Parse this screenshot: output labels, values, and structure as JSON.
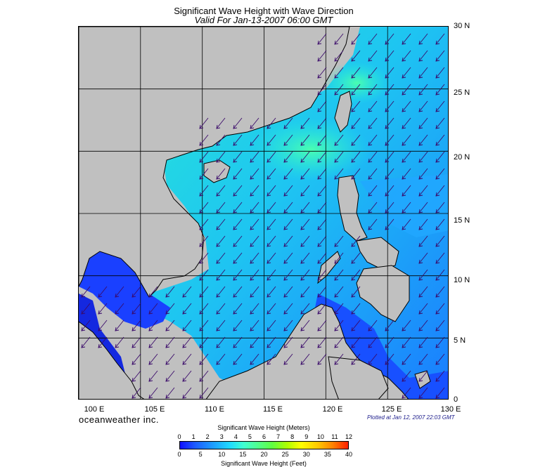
{
  "title": "Significant Wave Height with Wave Direction",
  "subtitle": "Valid For Jan-13-2007 06:00 GMT",
  "lat_labels": [
    "30 N",
    "25 N",
    "20 N",
    "15 N",
    "10 N",
    "5 N",
    "0"
  ],
  "lon_labels": [
    "100 E",
    "105 E",
    "110 E",
    "115 E",
    "120 E",
    "125 E",
    "130 E"
  ],
  "brand": "oceanweather inc.",
  "plotted_note": "Plotted at Jan 12, 2007 22:03 GMT",
  "colorbar": {
    "title_top": "Significant Wave Height (Meters)",
    "title_bottom": "Significant Wave Height (Feet)",
    "meter_ticks": [
      "0",
      "1",
      "2",
      "3",
      "4",
      "5",
      "6",
      "7",
      "8",
      "9",
      "10",
      "11",
      "12"
    ],
    "feet_ticks": [
      "0",
      "5",
      "10",
      "15",
      "20",
      "25",
      "30",
      "35",
      "40"
    ]
  },
  "map": {
    "lon_range": [
      100,
      130
    ],
    "lat_range": [
      0,
      30
    ],
    "land_color": "#c0c0c0",
    "arrow_color": "#3a0a6a",
    "wave_direction": "northeast monsoon, arrows pointing southwest",
    "zones": [
      {
        "name": "gulf-of-thailand",
        "color": "#1a3cff"
      },
      {
        "name": "central-sea",
        "color": "#1ea0ff"
      },
      {
        "name": "luzon-strait",
        "color": "#30e0c8"
      },
      {
        "name": "philippine-sea",
        "color": "#1e7cff"
      },
      {
        "name": "sulu-celebes",
        "color": "#1446ff"
      }
    ]
  }
}
